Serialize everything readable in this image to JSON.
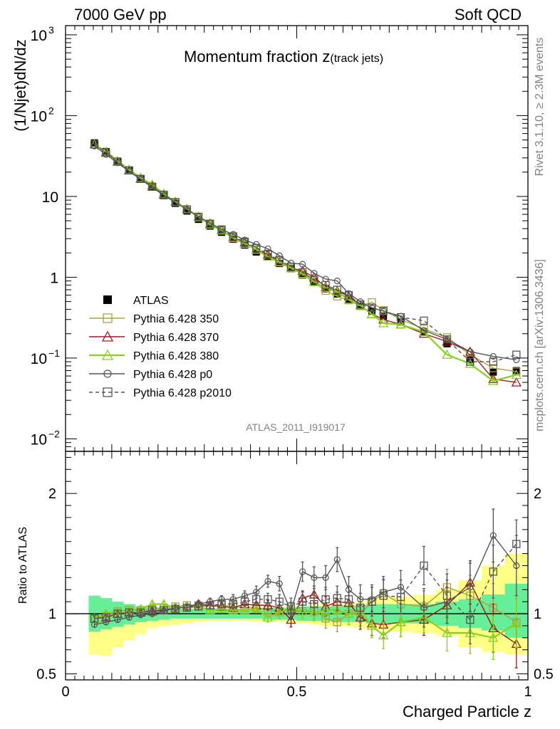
{
  "header": {
    "left": "7000 GeV pp",
    "right": "Soft QCD"
  },
  "side_labels": {
    "rivet": "Rivet 3.1.10, ≥ 2.3M events",
    "mcplots": "mcplots.cern.ch [arXiv:1306.3436]"
  },
  "chart_data": [
    {
      "type": "line",
      "panel": "main",
      "title_main": "Momentum fraction ",
      "title_var": "z",
      "title_sub": "(track jets)",
      "ylabel": "(1/Njet)dN/dz",
      "yscale": "log",
      "ylim": [
        0.007,
        1300
      ],
      "xlim": [
        0,
        1
      ],
      "yticks": [
        {
          "value": 0.01,
          "base": "10",
          "exp": "−2"
        },
        {
          "value": 0.1,
          "base": "10",
          "exp": "−1"
        },
        {
          "value": 1,
          "base": "1",
          "exp": ""
        },
        {
          "value": 10,
          "base": "10",
          "exp": ""
        },
        {
          "value": 100,
          "base": "10",
          "exp": "2"
        },
        {
          "value": 1000,
          "base": "10",
          "exp": "3"
        }
      ],
      "watermark": "ATLAS_2011_I919017",
      "x": [
        0.0625,
        0.0875,
        0.1125,
        0.1375,
        0.1625,
        0.1875,
        0.2125,
        0.2375,
        0.2625,
        0.2875,
        0.3125,
        0.3375,
        0.3625,
        0.3875,
        0.4125,
        0.4375,
        0.4625,
        0.4875,
        0.5125,
        0.5375,
        0.5625,
        0.5875,
        0.6125,
        0.6375,
        0.6625,
        0.6875,
        0.725,
        0.775,
        0.825,
        0.875,
        0.925,
        0.975
      ],
      "series": [
        {
          "name": "ATLAS",
          "color": "#000000",
          "marker": "filled-square",
          "values": [
            46,
            36,
            27,
            21,
            16.5,
            13,
            10.2,
            8.2,
            6.6,
            5.2,
            4.3,
            3.6,
            2.95,
            2.5,
            2.05,
            1.78,
            1.48,
            1.28,
            1.06,
            0.86,
            0.72,
            0.62,
            0.53,
            0.44,
            0.38,
            0.33,
            0.28,
            0.21,
            0.15,
            0.095,
            0.067,
            0.07
          ]
        },
        {
          "name": "Pythia 6.428 350",
          "color": "#a9a23a",
          "marker": "open-square",
          "dash": "",
          "values": [
            44,
            35,
            27,
            21,
            16.5,
            13.2,
            10.4,
            8.5,
            6.9,
            5.5,
            4.5,
            3.8,
            3.1,
            2.7,
            2.2,
            1.9,
            1.56,
            1.35,
            1.08,
            0.87,
            0.68,
            0.58,
            0.52,
            0.44,
            0.49,
            0.39,
            0.3,
            0.23,
            0.18,
            0.11,
            0.075,
            0.068
          ]
        },
        {
          "name": "Pythia 6.428 370",
          "color": "#9b1c1c",
          "marker": "open-triangle",
          "dash": "",
          "values": [
            44,
            35,
            27,
            21,
            16.6,
            13.3,
            10.5,
            8.6,
            7.0,
            5.6,
            4.6,
            3.8,
            3.1,
            2.7,
            2.2,
            1.9,
            1.55,
            1.3,
            1.2,
            1.0,
            0.76,
            0.68,
            0.58,
            0.45,
            0.35,
            0.3,
            0.26,
            0.2,
            0.16,
            0.12,
            0.055,
            0.05
          ]
        },
        {
          "name": "Pythia 6.428 380",
          "color": "#86d01e",
          "marker": "open-triangle",
          "dash": "",
          "values": [
            44,
            36,
            27.5,
            21.5,
            17,
            14,
            10.8,
            8.6,
            7.0,
            5.6,
            4.5,
            3.8,
            3.05,
            2.6,
            2.2,
            1.8,
            1.53,
            1.3,
            1.1,
            0.88,
            0.74,
            0.66,
            0.53,
            0.45,
            0.35,
            0.27,
            0.26,
            0.21,
            0.11,
            0.085,
            0.052,
            0.062
          ]
        },
        {
          "name": "Pythia 6.428 p0",
          "color": "#555555",
          "marker": "open-circle",
          "dash": "",
          "values": [
            42,
            33,
            26,
            20.5,
            16.2,
            13,
            10.3,
            8.4,
            6.9,
            5.6,
            4.7,
            3.9,
            3.4,
            2.9,
            2.55,
            2.25,
            1.85,
            1.5,
            1.45,
            1.12,
            0.95,
            0.9,
            0.63,
            0.5,
            0.42,
            0.38,
            0.33,
            0.22,
            0.17,
            0.12,
            0.105,
            0.095
          ]
        },
        {
          "name": "Pythia 6.428 p2010",
          "color": "#555555",
          "marker": "open-square",
          "dash": "5,4",
          "values": [
            44,
            35,
            27,
            21,
            16.5,
            13.2,
            10.5,
            8.5,
            6.9,
            5.6,
            4.6,
            3.9,
            3.2,
            2.75,
            2.3,
            1.95,
            1.63,
            1.35,
            1.15,
            0.93,
            0.8,
            0.7,
            0.6,
            0.46,
            0.42,
            0.38,
            0.32,
            0.29,
            0.17,
            0.09,
            0.09,
            0.11
          ]
        }
      ]
    },
    {
      "type": "line",
      "panel": "ratio",
      "ylabel": "Ratio to ATLAS",
      "xlabel": "Charged Particle z",
      "ylim": [
        0.45,
        2.35
      ],
      "xlim": [
        0,
        1
      ],
      "xticks": [
        {
          "value": 0,
          "label": "0"
        },
        {
          "value": 0.5,
          "label": "0.5"
        },
        {
          "value": 1,
          "label": "1"
        }
      ],
      "yticks": [
        {
          "value": 0.5,
          "label": "0.5"
        },
        {
          "value": 1,
          "label": "1"
        },
        {
          "value": 2,
          "label": "2"
        }
      ],
      "band_edges": [
        0.05,
        0.075,
        0.1,
        0.125,
        0.15,
        0.175,
        0.2,
        0.225,
        0.25,
        0.275,
        0.3,
        0.325,
        0.35,
        0.375,
        0.4,
        0.425,
        0.45,
        0.475,
        0.5,
        0.525,
        0.55,
        0.575,
        0.6,
        0.625,
        0.65,
        0.675,
        0.7,
        0.75,
        0.8,
        0.85,
        0.9,
        0.95,
        1.0
      ],
      "band_inner": [
        [
          0.85,
          1.15
        ],
        [
          0.87,
          1.13
        ],
        [
          0.89,
          1.1
        ],
        [
          0.91,
          1.08
        ],
        [
          0.93,
          1.06
        ],
        [
          0.94,
          1.05
        ],
        [
          0.95,
          1.05
        ],
        [
          0.96,
          1.04
        ],
        [
          0.96,
          1.04
        ],
        [
          0.96,
          1.04
        ],
        [
          0.96,
          1.04
        ],
        [
          0.96,
          1.04
        ],
        [
          0.96,
          1.04
        ],
        [
          0.96,
          1.04
        ],
        [
          0.96,
          1.04
        ],
        [
          0.95,
          1.05
        ],
        [
          0.95,
          1.05
        ],
        [
          0.95,
          1.05
        ],
        [
          0.94,
          1.06
        ],
        [
          0.94,
          1.06
        ],
        [
          0.94,
          1.06
        ],
        [
          0.93,
          1.07
        ],
        [
          0.93,
          1.07
        ],
        [
          0.93,
          1.07
        ],
        [
          0.92,
          1.08
        ],
        [
          0.92,
          1.08
        ],
        [
          0.92,
          1.08
        ],
        [
          0.92,
          1.08
        ],
        [
          0.9,
          1.1
        ],
        [
          0.88,
          1.12
        ],
        [
          0.86,
          1.16
        ],
        [
          0.8,
          1.25
        ]
      ],
      "band_outer": [
        [
          0.66,
          1.14
        ],
        [
          0.65,
          1.12
        ],
        [
          0.72,
          1.1
        ],
        [
          0.78,
          1.08
        ],
        [
          0.83,
          1.06
        ],
        [
          0.88,
          1.05
        ],
        [
          0.9,
          1.05
        ],
        [
          0.91,
          1.04
        ],
        [
          0.92,
          1.04
        ],
        [
          0.93,
          1.04
        ],
        [
          0.94,
          1.04
        ],
        [
          0.94,
          1.04
        ],
        [
          0.94,
          1.04
        ],
        [
          0.94,
          1.04
        ],
        [
          0.93,
          1.05
        ],
        [
          0.93,
          1.05
        ],
        [
          0.93,
          1.05
        ],
        [
          0.92,
          1.06
        ],
        [
          0.92,
          1.06
        ],
        [
          0.91,
          1.07
        ],
        [
          0.9,
          1.08
        ],
        [
          0.9,
          1.08
        ],
        [
          0.89,
          1.1
        ],
        [
          0.88,
          1.1
        ],
        [
          0.87,
          1.12
        ],
        [
          0.86,
          1.13
        ],
        [
          0.85,
          1.14
        ],
        [
          0.84,
          1.16
        ],
        [
          0.82,
          1.2
        ],
        [
          0.72,
          1.28
        ],
        [
          0.68,
          1.4
        ],
        [
          0.66,
          1.5
        ]
      ],
      "band_colors": {
        "inner": "#66ee99",
        "outer": "#ffff88"
      },
      "x": [
        0.0625,
        0.0875,
        0.1125,
        0.1375,
        0.1625,
        0.1875,
        0.2125,
        0.2375,
        0.2625,
        0.2875,
        0.3125,
        0.3375,
        0.3625,
        0.3875,
        0.4125,
        0.4375,
        0.4625,
        0.4875,
        0.5125,
        0.5375,
        0.5625,
        0.5875,
        0.6125,
        0.6375,
        0.6625,
        0.6875,
        0.725,
        0.775,
        0.825,
        0.875,
        0.925,
        0.975
      ],
      "series": [
        {
          "name": "Pythia 6.428 350",
          "color": "#a9a23a",
          "marker": "open-square",
          "dash": "",
          "values": [
            0.96,
            0.98,
            1.02,
            1.03,
            1.03,
            1.04,
            1.05,
            1.06,
            1.07,
            1.07,
            1.06,
            1.07,
            1.06,
            1.05,
            1.05,
            1.03,
            1.02,
            1.02,
            1.02,
            1.03,
            0.96,
            0.93,
            1.0,
            1.0,
            1.1,
            1.17,
            1.08,
            1.06,
            1.22,
            1.15,
            1.05,
            0.93
          ],
          "err": [
            0.03,
            0.03,
            0.02,
            0.02,
            0.02,
            0.02,
            0.02,
            0.02,
            0.02,
            0.02,
            0.02,
            0.02,
            0.02,
            0.02,
            0.03,
            0.03,
            0.04,
            0.05,
            0.06,
            0.07,
            0.08,
            0.08,
            0.09,
            0.1,
            0.12,
            0.12,
            0.12,
            0.13,
            0.15,
            0.17,
            0.2,
            0.22
          ]
        },
        {
          "name": "Pythia 6.428 370",
          "color": "#9b1c1c",
          "marker": "open-triangle",
          "dash": "",
          "values": [
            0.96,
            0.97,
            1.0,
            1.01,
            1.01,
            1.02,
            1.03,
            1.05,
            1.06,
            1.08,
            1.07,
            1.06,
            1.05,
            1.08,
            1.07,
            1.07,
            1.05,
            0.95,
            1.13,
            1.16,
            1.06,
            1.1,
            1.09,
            0.97,
            0.92,
            0.91,
            0.93,
            0.95,
            1.07,
            1.26,
            0.88,
            0.75
          ],
          "err": [
            0.03,
            0.03,
            0.02,
            0.02,
            0.02,
            0.02,
            0.02,
            0.02,
            0.02,
            0.02,
            0.02,
            0.02,
            0.02,
            0.03,
            0.03,
            0.04,
            0.05,
            0.06,
            0.06,
            0.07,
            0.08,
            0.08,
            0.09,
            0.1,
            0.1,
            0.11,
            0.12,
            0.13,
            0.15,
            0.18,
            0.2,
            0.2
          ]
        },
        {
          "name": "Pythia 6.428 380",
          "color": "#86d01e",
          "marker": "open-triangle",
          "dash": "",
          "values": [
            0.96,
            1.0,
            1.02,
            1.03,
            1.04,
            1.08,
            1.08,
            1.05,
            1.06,
            1.06,
            1.03,
            1.04,
            1.03,
            1.03,
            1.04,
            0.97,
            1.01,
            1.05,
            1.02,
            1.01,
            1.03,
            1.03,
            1.0,
            1.02,
            0.9,
            0.82,
            0.93,
            0.97,
            0.84,
            0.84,
            0.8,
            0.92
          ],
          "err": [
            0.03,
            0.03,
            0.02,
            0.02,
            0.02,
            0.02,
            0.02,
            0.02,
            0.02,
            0.02,
            0.02,
            0.02,
            0.02,
            0.03,
            0.03,
            0.04,
            0.05,
            0.05,
            0.06,
            0.07,
            0.08,
            0.08,
            0.09,
            0.1,
            0.1,
            0.11,
            0.12,
            0.13,
            0.15,
            0.17,
            0.18,
            0.2
          ]
        },
        {
          "name": "Pythia 6.428 p0",
          "color": "#555555",
          "marker": "open-circle",
          "dash": "",
          "values": [
            0.91,
            0.93,
            0.95,
            0.97,
            0.99,
            1.0,
            1.02,
            1.05,
            1.05,
            1.08,
            1.1,
            1.12,
            1.12,
            1.15,
            1.18,
            1.27,
            1.25,
            1.02,
            1.35,
            1.3,
            1.3,
            1.45,
            1.2,
            1.12,
            1.12,
            1.18,
            1.22,
            1.05,
            1.1,
            1.22,
            1.65,
            1.4
          ],
          "err": [
            0.02,
            0.02,
            0.02,
            0.02,
            0.02,
            0.02,
            0.02,
            0.02,
            0.02,
            0.03,
            0.03,
            0.03,
            0.04,
            0.04,
            0.05,
            0.05,
            0.06,
            0.07,
            0.08,
            0.09,
            0.1,
            0.1,
            0.11,
            0.12,
            0.12,
            0.13,
            0.14,
            0.16,
            0.18,
            0.2,
            0.22,
            0.25
          ]
        },
        {
          "name": "Pythia 6.428 p2010",
          "color": "#555555",
          "marker": "open-square",
          "dash": "5,4",
          "values": [
            0.96,
            0.97,
            1.0,
            1.01,
            1.01,
            1.03,
            1.03,
            1.04,
            1.05,
            1.06,
            1.07,
            1.08,
            1.08,
            1.1,
            1.12,
            1.12,
            1.1,
            1.06,
            1.1,
            1.08,
            1.12,
            1.13,
            1.12,
            1.05,
            1.1,
            1.15,
            1.14,
            1.4,
            1.15,
            0.95,
            1.35,
            1.58
          ],
          "err": [
            0.02,
            0.02,
            0.02,
            0.02,
            0.02,
            0.02,
            0.02,
            0.02,
            0.02,
            0.03,
            0.03,
            0.03,
            0.04,
            0.04,
            0.05,
            0.05,
            0.06,
            0.07,
            0.08,
            0.09,
            0.1,
            0.1,
            0.11,
            0.12,
            0.12,
            0.13,
            0.14,
            0.16,
            0.18,
            0.2,
            0.22,
            0.2
          ]
        }
      ]
    }
  ]
}
